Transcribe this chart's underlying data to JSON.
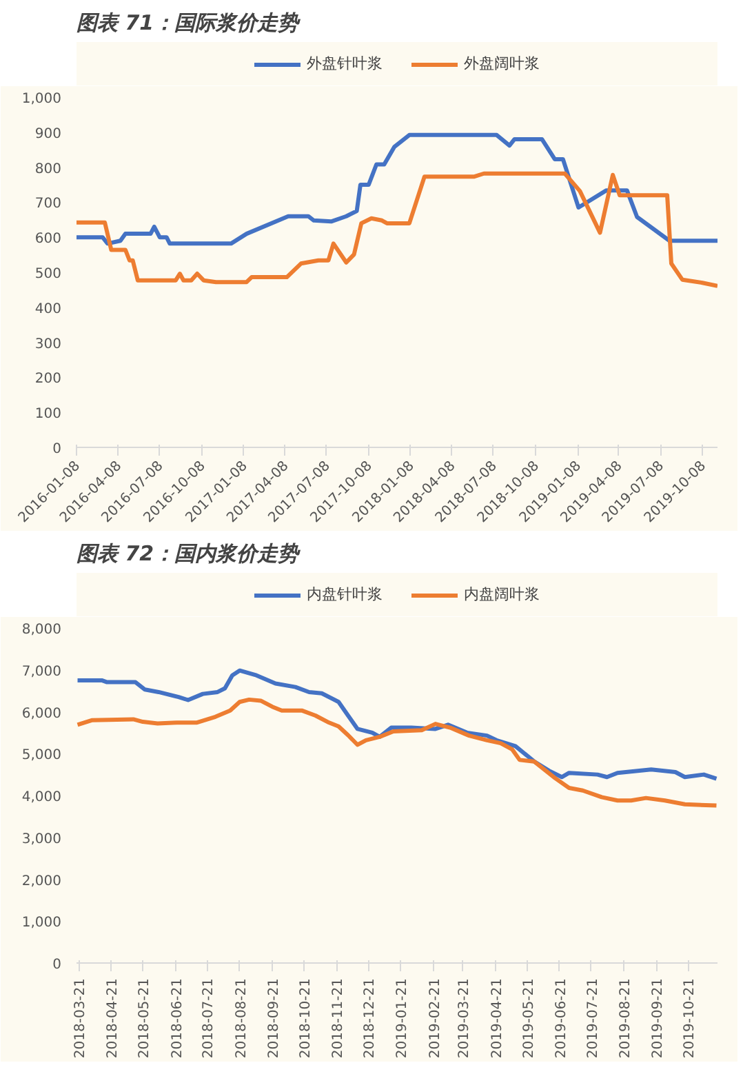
{
  "chart_data": [
    {
      "type": "line",
      "title": "图表 71：国际浆价走势",
      "legend": "top",
      "grid": false,
      "xlim": [
        "2016-01-08",
        "2019-11-10"
      ],
      "xticks": [
        "2016-01-08",
        "2016-04-08",
        "2016-07-08",
        "2016-10-08",
        "2017-01-08",
        "2017-04-08",
        "2017-07-08",
        "2017-10-08",
        "2018-01-08",
        "2018-04-08",
        "2018-07-08",
        "2018-10-08",
        "2019-01-08",
        "2019-04-08",
        "2019-07-08",
        "2019-10-08"
      ],
      "ylim": [
        0,
        1000
      ],
      "yticks": [
        0,
        100,
        200,
        300,
        400,
        500,
        600,
        700,
        800,
        900,
        {
          "value": 1000,
          "label": "1,000"
        }
      ],
      "series": [
        {
          "name": "外盘针叶浆",
          "color": "#4472c4",
          "x": [
            "2016-01-08",
            "2016-03-05",
            "2016-03-16",
            "2016-04-13",
            "2016-04-24",
            "2016-06-18",
            "2016-06-26",
            "2016-07-08",
            "2016-07-23",
            "2016-07-30",
            "2016-12-11",
            "2017-01-14",
            "2017-04-15",
            "2017-05-29",
            "2017-06-10",
            "2017-07-18",
            "2017-08-20",
            "2017-09-12",
            "2017-09-20",
            "2017-10-08",
            "2017-10-25",
            "2017-11-11",
            "2017-12-03",
            "2018-01-05",
            "2018-07-15",
            "2018-08-12",
            "2018-08-23",
            "2018-10-22",
            "2018-11-19",
            "2018-12-07",
            "2019-01-10",
            "2019-03-12",
            "2019-04-26",
            "2019-05-18",
            "2019-07-28",
            "2019-11-10"
          ],
          "values": [
            600,
            600,
            582,
            590,
            610,
            610,
            630,
            600,
            600,
            582,
            582,
            610,
            660,
            660,
            648,
            645,
            660,
            675,
            750,
            750,
            808,
            808,
            858,
            892,
            892,
            862,
            880,
            880,
            823,
            823,
            685,
            734,
            734,
            658,
            590,
            590
          ]
        },
        {
          "name": "外盘阔叶浆",
          "color": "#ed7d31",
          "x": [
            "2016-01-08",
            "2016-03-10",
            "2016-03-24",
            "2016-04-24",
            "2016-05-03",
            "2016-05-10",
            "2016-05-21",
            "2016-08-12",
            "2016-08-21",
            "2016-08-29",
            "2016-09-15",
            "2016-09-28",
            "2016-10-12",
            "2016-11-08",
            "2017-01-14",
            "2017-01-25",
            "2017-04-12",
            "2017-05-13",
            "2017-06-20",
            "2017-07-12",
            "2017-07-23",
            "2017-08-20",
            "2017-09-06",
            "2017-09-22",
            "2017-10-14",
            "2017-11-06",
            "2017-11-17",
            "2018-01-05",
            "2018-02-07",
            "2018-05-26",
            "2018-06-17",
            "2018-12-11",
            "2019-01-13",
            "2019-02-26",
            "2019-03-26",
            "2019-04-10",
            "2019-07-23",
            "2019-08-01",
            "2019-08-25",
            "2019-10-08",
            "2019-11-10"
          ],
          "values": [
            642,
            642,
            564,
            564,
            534,
            534,
            477,
            477,
            496,
            477,
            477,
            496,
            477,
            472,
            472,
            486,
            486,
            525,
            534,
            534,
            582,
            528,
            551,
            640,
            654,
            648,
            640,
            640,
            773,
            773,
            782,
            782,
            732,
            613,
            778,
            720,
            720,
            525,
            479,
            470,
            461
          ]
        }
      ]
    },
    {
      "type": "line",
      "title": "图表 72：国内浆价走势",
      "legend": "top",
      "grid": false,
      "xlim": [
        "2018-03-19",
        "2019-11-18"
      ],
      "xticks": [
        "2018-03-21",
        "2018-04-21",
        "2018-05-21",
        "2018-06-21",
        "2018-07-21",
        "2018-08-21",
        "2018-09-21",
        "2018-10-21",
        "2018-11-21",
        "2018-12-21",
        "2019-01-21",
        "2019-02-21",
        "2019-03-21",
        "2019-04-21",
        "2019-05-21",
        "2019-06-21",
        "2019-07-21",
        "2019-08-21",
        "2019-09-21",
        "2019-10-21"
      ],
      "ylim": [
        0,
        8000
      ],
      "yticks": [
        0,
        {
          "value": 1000,
          "label": "1,000"
        },
        {
          "value": 2000,
          "label": "2,000"
        },
        {
          "value": 3000,
          "label": "3,000"
        },
        {
          "value": 4000,
          "label": "4,000"
        },
        {
          "value": 5000,
          "label": "5,000"
        },
        {
          "value": 6000,
          "label": "6,000"
        },
        {
          "value": 7000,
          "label": "7,000"
        },
        {
          "value": 8000,
          "label": "8,000"
        }
      ],
      "series": [
        {
          "name": "内盘针叶浆",
          "color": "#4472c4",
          "x": [
            "2018-03-20",
            "2018-04-12",
            "2018-04-17",
            "2018-05-14",
            "2018-05-23",
            "2018-06-05",
            "2018-06-24",
            "2018-07-03",
            "2018-07-17",
            "2018-07-31",
            "2018-08-07",
            "2018-08-14",
            "2018-08-21",
            "2018-09-06",
            "2018-09-24",
            "2018-10-13",
            "2018-10-26",
            "2018-11-07",
            "2018-11-23",
            "2018-12-02",
            "2018-12-11",
            "2018-12-25",
            "2019-01-01",
            "2019-01-12",
            "2019-01-31",
            "2019-02-23",
            "2019-03-07",
            "2019-03-25",
            "2019-04-13",
            "2019-04-22",
            "2019-05-10",
            "2019-05-28",
            "2019-06-11",
            "2019-06-23",
            "2019-06-30",
            "2019-07-27",
            "2019-08-05",
            "2019-08-15",
            "2019-09-16",
            "2019-10-09",
            "2019-10-18",
            "2019-11-05",
            "2019-11-17"
          ],
          "values": [
            6750,
            6750,
            6706,
            6706,
            6530,
            6470,
            6353,
            6280,
            6426,
            6470,
            6560,
            6870,
            6985,
            6870,
            6676,
            6590,
            6470,
            6440,
            6235,
            5910,
            5590,
            5500,
            5400,
            5620,
            5620,
            5590,
            5690,
            5500,
            5430,
            5320,
            5180,
            4810,
            4590,
            4440,
            4540,
            4500,
            4440,
            4540,
            4620,
            4560,
            4440,
            4500,
            4400
          ]
        },
        {
          "name": "内盘阔叶浆",
          "color": "#ed7d31",
          "x": [
            "2018-03-20",
            "2018-04-03",
            "2018-05-12",
            "2018-05-21",
            "2018-06-04",
            "2018-06-22",
            "2018-07-11",
            "2018-07-29",
            "2018-08-12",
            "2018-08-21",
            "2018-08-30",
            "2018-09-10",
            "2018-09-21",
            "2018-09-30",
            "2018-10-19",
            "2018-11-01",
            "2018-11-14",
            "2018-11-23",
            "2018-12-02",
            "2018-12-11",
            "2018-12-19",
            "2019-01-01",
            "2019-01-14",
            "2019-02-10",
            "2019-02-23",
            "2019-03-09",
            "2019-03-27",
            "2019-04-13",
            "2019-04-26",
            "2019-05-07",
            "2019-05-14",
            "2019-05-28",
            "2019-06-17",
            "2019-06-30",
            "2019-07-13",
            "2019-07-31",
            "2019-08-15",
            "2019-08-28",
            "2019-09-11",
            "2019-09-29",
            "2019-10-18",
            "2019-11-17"
          ],
          "values": [
            5690,
            5800,
            5820,
            5760,
            5720,
            5740,
            5740,
            5880,
            6030,
            6235,
            6290,
            6265,
            6120,
            6030,
            6030,
            5910,
            5740,
            5650,
            5440,
            5210,
            5320,
            5400,
            5530,
            5560,
            5710,
            5620,
            5430,
            5320,
            5250,
            5100,
            4850,
            4810,
            4410,
            4180,
            4120,
            3960,
            3880,
            3880,
            3940,
            3880,
            3790,
            3760
          ]
        }
      ]
    }
  ]
}
